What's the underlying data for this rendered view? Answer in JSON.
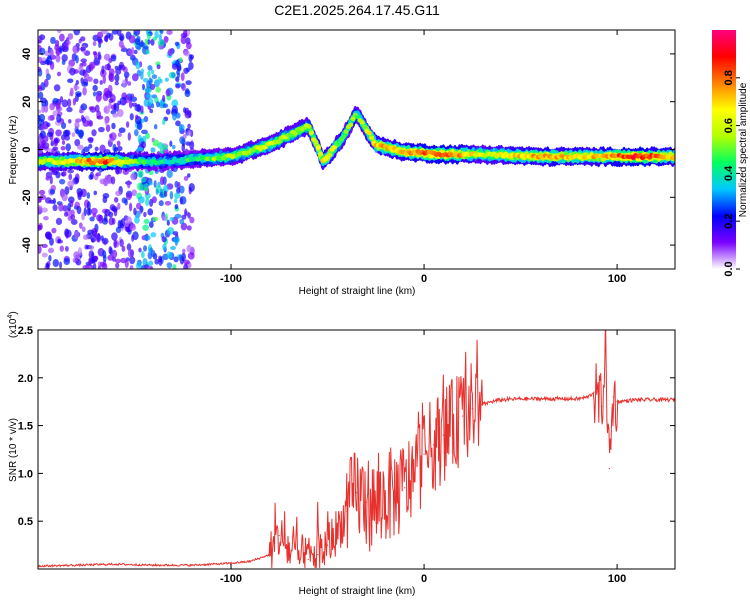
{
  "title": "C2E1.2025.264.17.45.G11",
  "colors": {
    "snr_line": "#e8302c",
    "axes": "#000000",
    "background": "#ffffff"
  },
  "chart_data": [
    {
      "type": "heatmap",
      "name": "spectrogram",
      "xlabel": "Height of straight line (km)",
      "ylabel": "Frequency (Hz)",
      "xlim": [
        -200,
        130
      ],
      "ylim": [
        -50,
        50
      ],
      "xticks": [
        -100,
        0,
        100
      ],
      "yticks": [
        -40,
        -20,
        0,
        20,
        40
      ],
      "colorbar": {
        "label": "Normalized spectral amplitude",
        "range": [
          0.0,
          1.0
        ],
        "ticks": [
          "0.0",
          "0.2",
          "0.4",
          "0.6",
          "0.8"
        ],
        "colormap": [
          "#ffffff",
          "#7a00ff",
          "#0000ff",
          "#00c8ff",
          "#00ff60",
          "#b4ff00",
          "#ffff00",
          "#ff8000",
          "#ff0000",
          "#ff0080"
        ]
      },
      "ridge": [
        {
          "x": -200,
          "f": -5,
          "a": 0.55
        },
        {
          "x": -180,
          "f": -5,
          "a": 0.7
        },
        {
          "x": -165,
          "f": -5,
          "a": 0.85
        },
        {
          "x": -150,
          "f": -5,
          "a": 0.5
        },
        {
          "x": -135,
          "f": -5,
          "a": 0.4
        },
        {
          "x": -120,
          "f": -4,
          "a": 0.45
        },
        {
          "x": -100,
          "f": -3,
          "a": 0.55
        },
        {
          "x": -80,
          "f": 2,
          "a": 0.6
        },
        {
          "x": -60,
          "f": 10,
          "a": 0.55
        },
        {
          "x": -52,
          "f": -5,
          "a": 0.7
        },
        {
          "x": -42,
          "f": 5,
          "a": 0.5
        },
        {
          "x": -35,
          "f": 15,
          "a": 0.5
        },
        {
          "x": -25,
          "f": 2,
          "a": 0.7
        },
        {
          "x": -10,
          "f": -1,
          "a": 0.75
        },
        {
          "x": 10,
          "f": -2,
          "a": 0.85
        },
        {
          "x": 30,
          "f": -2,
          "a": 0.6
        },
        {
          "x": 60,
          "f": -3,
          "a": 0.75
        },
        {
          "x": 90,
          "f": -3,
          "a": 0.7
        },
        {
          "x": 110,
          "f": -3,
          "a": 0.9
        },
        {
          "x": 130,
          "f": -3,
          "a": 0.7
        }
      ],
      "noise_region": [
        -200,
        -120
      ]
    },
    {
      "type": "line",
      "name": "snr",
      "xlabel": "Height of straight line (km)",
      "ylabel": "SNR (10 * v/v)",
      "multiplier_label": "(x10",
      "multiplier_exp": "4",
      "multiplier_close": ")",
      "xlim": [
        -200,
        130
      ],
      "ylim": [
        0,
        2.5
      ],
      "xticks": [
        -100,
        0,
        100
      ],
      "yticks": [
        "0.5",
        "1.0",
        "1.5",
        "2.0",
        "2.5"
      ],
      "series": [
        {
          "name": "SNR",
          "x": [
            -200,
            -180,
            -160,
            -140,
            -120,
            -100,
            -90,
            -80,
            -75,
            -70,
            -65,
            -60,
            -55,
            -50,
            -45,
            -40,
            -35,
            -30,
            -25,
            -20,
            -15,
            -10,
            -5,
            0,
            5,
            10,
            15,
            20,
            25,
            30,
            35,
            40,
            50,
            60,
            70,
            80,
            85,
            88,
            92,
            94,
            96,
            98,
            100,
            110,
            120,
            130
          ],
          "y": [
            0.03,
            0.04,
            0.05,
            0.04,
            0.04,
            0.06,
            0.08,
            0.15,
            0.35,
            0.2,
            0.12,
            0.1,
            0.15,
            0.25,
            0.4,
            0.6,
            0.8,
            0.7,
            0.65,
            0.75,
            0.8,
            0.85,
            1.0,
            1.2,
            1.3,
            1.4,
            1.5,
            1.6,
            1.68,
            1.72,
            1.75,
            1.77,
            1.78,
            1.78,
            1.78,
            1.78,
            1.8,
            1.85,
            1.7,
            2.3,
            1.05,
            1.8,
            1.75,
            1.77,
            1.77,
            1.77
          ]
        }
      ]
    }
  ]
}
